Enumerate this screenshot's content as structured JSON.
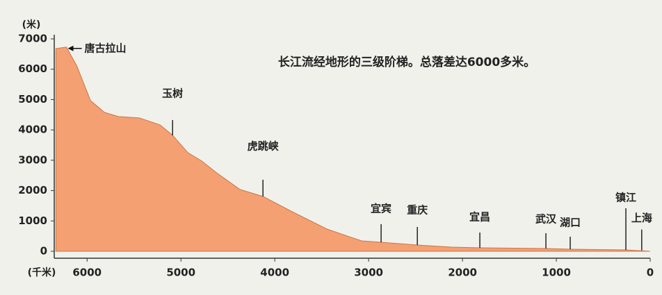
{
  "chart_data": {
    "type": "area",
    "title": "长江流经地形的三级阶梯。总落差达6000多米。",
    "y_label": "(米)",
    "x_label": "(千米)",
    "x": [
      6333,
      6220,
      6110,
      5963,
      5815,
      5667,
      5444,
      5222,
      5089,
      4926,
      4778,
      4630,
      4370,
      4126,
      3815,
      3444,
      3074,
      2867,
      2481,
      2111,
      1815,
      1111,
      852,
      259,
      0
    ],
    "values": [
      6680,
      6730,
      6110,
      4966,
      4577,
      4440,
      4394,
      4165,
      3822,
      3250,
      2975,
      2610,
      2037,
      1808,
      1304,
      732,
      343,
      297,
      206,
      137,
      114,
      92,
      69,
      46,
      0
    ],
    "color": "#f4a073",
    "xlim": [
      6350,
      0
    ],
    "xticks": [
      6000,
      5000,
      4000,
      3000,
      2000,
      1000,
      0
    ],
    "ylim": [
      0,
      7000
    ],
    "yticks": [
      0,
      1000,
      2000,
      3000,
      4000,
      5000,
      6000,
      7000
    ],
    "annotations": [
      {
        "label": "唐古拉山",
        "x": 6220,
        "y": 6730
      },
      {
        "label": "玉树",
        "x": 5089,
        "y": 3822
      },
      {
        "label": "虎跳峡",
        "x": 4126,
        "y": 1808
      },
      {
        "label": "宜宾",
        "x": 2867,
        "y": 297
      },
      {
        "label": "重庆",
        "x": 2481,
        "y": 206
      },
      {
        "label": "宜昌",
        "x": 1815,
        "y": 114
      },
      {
        "label": "武汉",
        "x": 1111,
        "y": 92
      },
      {
        "label": "湖口",
        "x": 852,
        "y": 69
      },
      {
        "label": "镇江",
        "x": 259,
        "y": 46
      },
      {
        "label": "上海",
        "x": 90,
        "y": 30
      }
    ]
  }
}
